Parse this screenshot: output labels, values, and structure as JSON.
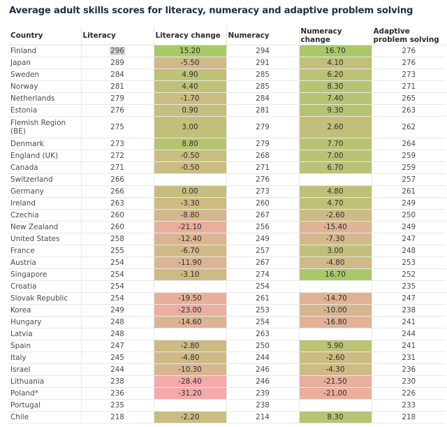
{
  "title": "Average adult skills scores for literacy, numeracy and adaptive problem solving",
  "columns": [
    "Country",
    "Literacy",
    "Literacy change",
    "Numeracy",
    "Numeracy change",
    "Adaptive problem solving"
  ],
  "color_scale": {
    "positive": "#a9c969",
    "neutral": "#c8bd7f",
    "negative": "#f5a9aa"
  },
  "rows": [
    {
      "country": "Finland",
      "literacy": "296",
      "literacy_change": "15.20",
      "numeracy": "294",
      "numeracy_change": "16.70",
      "aps": "276",
      "highlight": true
    },
    {
      "country": "Japan",
      "literacy": "289",
      "literacy_change": "-5.50",
      "numeracy": "291",
      "numeracy_change": "4.10",
      "aps": "276"
    },
    {
      "country": "Sweden",
      "literacy": "284",
      "literacy_change": "4.90",
      "numeracy": "285",
      "numeracy_change": "6.20",
      "aps": "273"
    },
    {
      "country": "Norway",
      "literacy": "281",
      "literacy_change": "4.40",
      "numeracy": "285",
      "numeracy_change": "8.30",
      "aps": "271"
    },
    {
      "country": "Netherlands",
      "literacy": "279",
      "literacy_change": "-1.70",
      "numeracy": "284",
      "numeracy_change": "7.40",
      "aps": "265"
    },
    {
      "country": "Estonia",
      "literacy": "276",
      "literacy_change": "0.90",
      "numeracy": "281",
      "numeracy_change": "9.30",
      "aps": "263"
    },
    {
      "country": "Flemish Region (BE)",
      "literacy": "275",
      "literacy_change": "3.00",
      "numeracy": "279",
      "numeracy_change": "2.60",
      "aps": "262",
      "tall": true
    },
    {
      "country": "Denmark",
      "literacy": "273",
      "literacy_change": "8.80",
      "numeracy": "279",
      "numeracy_change": "7.70",
      "aps": "264"
    },
    {
      "country": "England (UK)",
      "literacy": "272",
      "literacy_change": "-0.50",
      "numeracy": "268",
      "numeracy_change": "7.00",
      "aps": "259"
    },
    {
      "country": "Canada",
      "literacy": "271",
      "literacy_change": "-0.50",
      "numeracy": "271",
      "numeracy_change": "6.70",
      "aps": "259"
    },
    {
      "country": "Switzerland",
      "literacy": "266",
      "literacy_change": "",
      "numeracy": "276",
      "numeracy_change": "",
      "aps": "257"
    },
    {
      "country": "Germany",
      "literacy": "266",
      "literacy_change": "0.00",
      "numeracy": "273",
      "numeracy_change": "4.80",
      "aps": "261"
    },
    {
      "country": "Ireland",
      "literacy": "263",
      "literacy_change": "-3.30",
      "numeracy": "260",
      "numeracy_change": "4.70",
      "aps": "249"
    },
    {
      "country": "Czechia",
      "literacy": "260",
      "literacy_change": "-8.80",
      "numeracy": "267",
      "numeracy_change": "-2.60",
      "aps": "250"
    },
    {
      "country": "New Zealand",
      "literacy": "260",
      "literacy_change": "-21.10",
      "numeracy": "256",
      "numeracy_change": "-15.40",
      "aps": "249"
    },
    {
      "country": "United States",
      "literacy": "258",
      "literacy_change": "-12.40",
      "numeracy": "249",
      "numeracy_change": "-7.30",
      "aps": "247"
    },
    {
      "country": "France",
      "literacy": "255",
      "literacy_change": "-6.70",
      "numeracy": "257",
      "numeracy_change": "3.00",
      "aps": "248"
    },
    {
      "country": "Austria",
      "literacy": "254",
      "literacy_change": "-11.90",
      "numeracy": "267",
      "numeracy_change": "-4.80",
      "aps": "253"
    },
    {
      "country": "Singapore",
      "literacy": "254",
      "literacy_change": "-3.10",
      "numeracy": "274",
      "numeracy_change": "16.70",
      "aps": "252"
    },
    {
      "country": "Croatia",
      "literacy": "254",
      "literacy_change": "",
      "numeracy": "254",
      "numeracy_change": "",
      "aps": "235"
    },
    {
      "country": "Slovak Republic",
      "literacy": "254",
      "literacy_change": "-19.50",
      "numeracy": "261",
      "numeracy_change": "-14.70",
      "aps": "247"
    },
    {
      "country": "Korea",
      "literacy": "249",
      "literacy_change": "-23.00",
      "numeracy": "253",
      "numeracy_change": "-10.00",
      "aps": "238"
    },
    {
      "country": "Hungary",
      "literacy": "248",
      "literacy_change": "-14.60",
      "numeracy": "254",
      "numeracy_change": "-16.80",
      "aps": "241"
    },
    {
      "country": "Latvia",
      "literacy": "248",
      "literacy_change": "",
      "numeracy": "263",
      "numeracy_change": "",
      "aps": "244"
    },
    {
      "country": "Spain",
      "literacy": "247",
      "literacy_change": "-2.80",
      "numeracy": "250",
      "numeracy_change": "5.90",
      "aps": "241"
    },
    {
      "country": "Italy",
      "literacy": "245",
      "literacy_change": "-4.80",
      "numeracy": "244",
      "numeracy_change": "-2.60",
      "aps": "231"
    },
    {
      "country": "Israel",
      "literacy": "244",
      "literacy_change": "-10.30",
      "numeracy": "246",
      "numeracy_change": "-4.30",
      "aps": "236"
    },
    {
      "country": "Lithuania",
      "literacy": "238",
      "literacy_change": "-28.40",
      "numeracy": "246",
      "numeracy_change": "-21.50",
      "aps": "230"
    },
    {
      "country": "Poland*",
      "literacy": "236",
      "literacy_change": "-31.20",
      "numeracy": "239",
      "numeracy_change": "-21.00",
      "aps": "226"
    },
    {
      "country": "Portugal",
      "literacy": "235",
      "literacy_change": "",
      "numeracy": "238",
      "numeracy_change": "",
      "aps": "233"
    },
    {
      "country": "Chile",
      "literacy": "218",
      "literacy_change": "-2.20",
      "numeracy": "214",
      "numeracy_change": "8.30",
      "aps": "218"
    }
  ]
}
